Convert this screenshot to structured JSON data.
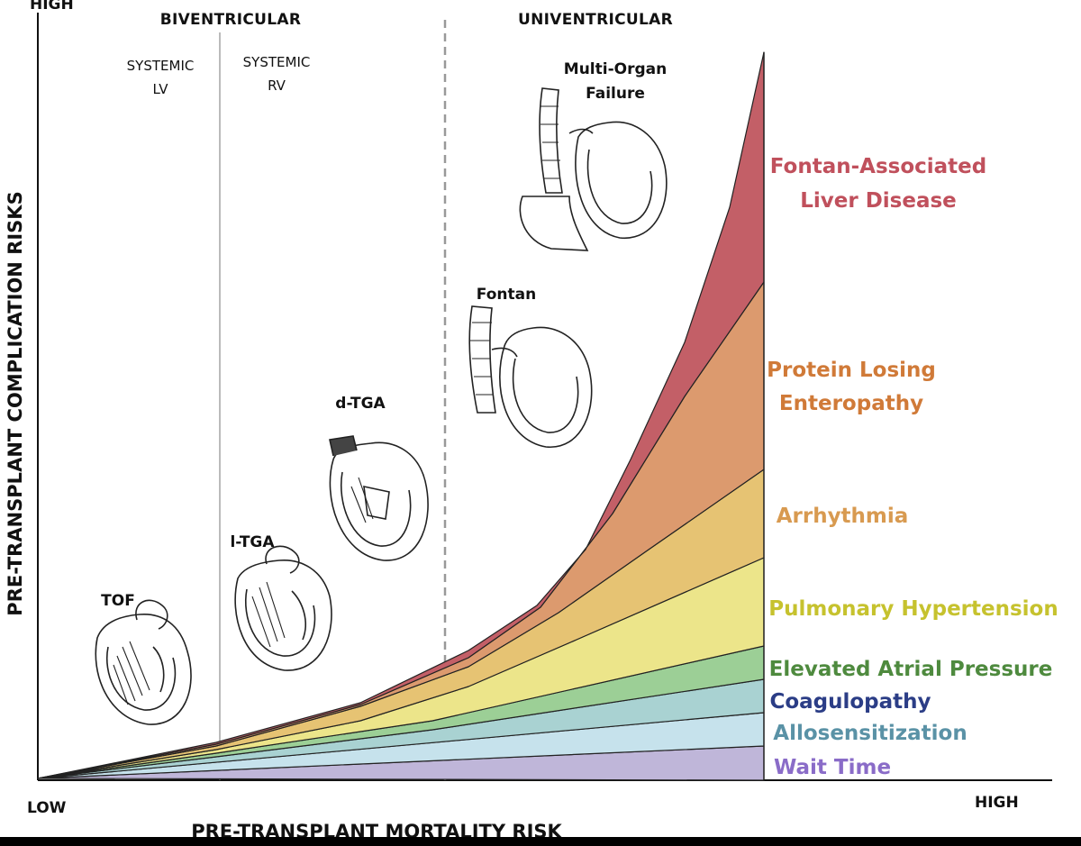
{
  "axes": {
    "y_high": "HIGH",
    "x_low": "LOW",
    "x_high": "HIGH",
    "y_title": "PRE-TRANSPLANT COMPLICATION RISKS",
    "x_title": "PRE-TRANSPLANT MORTALITY RISK"
  },
  "sections": {
    "biventricular": "BIVENTRICULAR",
    "univentricular": "UNIVENTRICULAR",
    "systemic_lv": [
      "SYSTEMIC",
      "LV"
    ],
    "systemic_rv": [
      "SYSTEMIC",
      "RV"
    ]
  },
  "hearts": {
    "tof": "TOF",
    "ltga": "l-TGA",
    "dtga": "d-TGA",
    "fontan": "Fontan",
    "multi_organ": [
      "Multi-Organ",
      "Failure"
    ]
  },
  "risk_labels": [
    {
      "key": "liver",
      "lines": [
        "Fontan-Associated",
        "Liver Disease"
      ],
      "color": "#c0505c"
    },
    {
      "key": "ple",
      "lines": [
        "Protein Losing",
        "Enteropathy"
      ],
      "color": "#d07a38"
    },
    {
      "key": "arrhythmia",
      "lines": [
        "Arrhythmia"
      ],
      "color": "#d89a50"
    },
    {
      "key": "ph",
      "lines": [
        "Pulmonary Hypertension"
      ],
      "color": "#c6c22e"
    },
    {
      "key": "atrial",
      "lines": [
        "Elevated Atrial Pressure"
      ],
      "color": "#4e8a3e"
    },
    {
      "key": "coag",
      "lines": [
        "Coagulopathy"
      ],
      "color": "#2b3d86"
    },
    {
      "key": "allo",
      "lines": [
        "Allosensitization"
      ],
      "color": "#5a92a6"
    },
    {
      "key": "wait",
      "lines": [
        "Wait Time"
      ],
      "color": "#8a6cc8"
    }
  ],
  "bands": [
    {
      "name": "Wait Time",
      "fill": "#bfb6d9"
    },
    {
      "name": "Allosensitization",
      "fill": "#c6e2ec"
    },
    {
      "name": "Coagulopathy",
      "fill": "#a9d2d2"
    },
    {
      "name": "Elevated Atrial Pressure",
      "fill": "#9ccf96"
    },
    {
      "name": "Pulmonary Hypertension",
      "fill": "#ece58a"
    },
    {
      "name": "Arrhythmia",
      "fill": "#e6c373"
    },
    {
      "name": "Protein Losing Enteropathy",
      "fill": "#dc9a6e"
    },
    {
      "name": "Fontan-Associated Liver Disease",
      "fill": "#c35f67"
    }
  ]
}
